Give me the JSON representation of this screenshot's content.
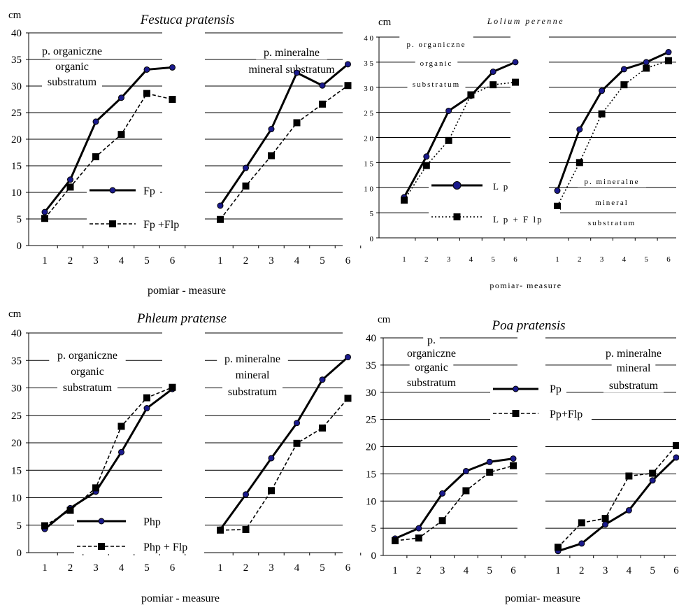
{
  "chart_data": [
    {
      "type": "line",
      "title": "Festuca pratensis",
      "ylabel": "cm",
      "xlabel": "pomiar - measure",
      "ylim": [
        0,
        40
      ],
      "y_ticks": [
        "0",
        "5",
        "10",
        "15",
        "20",
        "25",
        "30",
        "35",
        "40"
      ],
      "groups": [
        {
          "label_pl": "p. organiczne",
          "label_en": "organic substratum",
          "x": [
            "1",
            "2",
            "3",
            "4",
            "5",
            "6"
          ]
        },
        {
          "label_pl": "p. mineralne",
          "label_en": "mineral substratum",
          "x": [
            "1",
            "2",
            "3",
            "4",
            "5",
            "6"
          ]
        }
      ],
      "series": [
        {
          "name": "Fp",
          "style": "solid",
          "marker": "circle",
          "values": [
            [
              6.3,
              12.4,
              23.3,
              27.8,
              33.1,
              33.5
            ],
            [
              7.5,
              14.6,
              21.9,
              32.5,
              30.1,
              34.1
            ]
          ]
        },
        {
          "name": "Fp +Flp",
          "style": "dashed",
          "marker": "square",
          "values": [
            [
              5.1,
              11.0,
              16.7,
              20.9,
              28.6,
              27.5
            ],
            [
              4.9,
              11.2,
              16.9,
              23.1,
              26.6,
              30.1
            ]
          ]
        }
      ]
    },
    {
      "type": "line",
      "title": "Lolium perenne",
      "ylabel": "cm",
      "xlabel": "pomiar- measure",
      "ylim": [
        0,
        40
      ],
      "y_ticks": [
        "0",
        "5",
        "1 0",
        "1 5",
        "2 0",
        "2 5",
        "3 0",
        "3 5",
        "4 0"
      ],
      "groups": [
        {
          "label_pl": "p. organiczne",
          "label_en": "organic substratum",
          "x": [
            "1",
            "2",
            "3",
            "4",
            "5",
            "6"
          ]
        },
        {
          "label_pl": "p. mineralne",
          "label_en": "mineral substratum",
          "x": [
            "1",
            "2",
            "3",
            "4",
            "5",
            "6"
          ]
        }
      ],
      "series": [
        {
          "name": "L p",
          "style": "solid",
          "marker": "circle",
          "values": [
            [
              8.1,
              16.2,
              25.3,
              28.3,
              33.1,
              35.0
            ],
            [
              9.4,
              21.6,
              29.3,
              33.6,
              35.0,
              37.0
            ]
          ]
        },
        {
          "name": "L p + F lp",
          "style": "dotted",
          "marker": "square",
          "values": [
            [
              7.5,
              14.4,
              19.4,
              28.5,
              30.5,
              31.0
            ],
            [
              6.3,
              15.0,
              24.7,
              30.5,
              33.8,
              35.3
            ]
          ]
        }
      ]
    },
    {
      "type": "line",
      "title": "Phleum pratense",
      "ylabel": "cm",
      "xlabel": "pomiar - measure",
      "ylim": [
        0,
        40
      ],
      "y_ticks": [
        "0",
        "5",
        "10",
        "15",
        "20",
        "25",
        "30",
        "35",
        "40"
      ],
      "groups": [
        {
          "label_pl": "p. organiczne",
          "label_en": "organic substratum",
          "x": [
            "1",
            "2",
            "3",
            "4",
            "5",
            "6"
          ]
        },
        {
          "label_pl": "p. mineralne",
          "label_en": "mineral substratum",
          "x": [
            "1",
            "2",
            "3",
            "4",
            "5",
            "6"
          ]
        }
      ],
      "series": [
        {
          "name": "Php",
          "style": "solid",
          "marker": "circle",
          "values": [
            [
              4.3,
              8.1,
              11.1,
              18.3,
              26.3,
              29.8
            ],
            [
              4.2,
              10.6,
              17.2,
              23.6,
              31.5,
              35.6
            ]
          ]
        },
        {
          "name": "Php + Flp",
          "style": "dashed",
          "marker": "square",
          "values": [
            [
              4.9,
              7.7,
              11.8,
              23.0,
              28.2,
              30.1
            ],
            [
              4.1,
              4.2,
              11.3,
              19.9,
              22.7,
              28.1
            ]
          ]
        }
      ]
    },
    {
      "type": "line",
      "title": "Poa pratensis",
      "ylabel": "cm",
      "xlabel": "pomiar- measure",
      "ylim": [
        0,
        40
      ],
      "y_ticks": [
        "0",
        "5",
        "10",
        "15",
        "20",
        "25",
        "30",
        "35",
        "40"
      ],
      "groups": [
        {
          "label_pl": "p. organiczne",
          "label_en": "organic substratum",
          "x": [
            "1",
            "2",
            "3",
            "4",
            "5",
            "6"
          ]
        },
        {
          "label_pl": "p. mineralne",
          "label_en": "mineral substratum",
          "x": [
            "1",
            "2",
            "3",
            "4",
            "5",
            "6"
          ]
        }
      ],
      "series": [
        {
          "name": "Pp",
          "style": "solid",
          "marker": "circle",
          "values": [
            [
              3.1,
              5.0,
              11.4,
              15.5,
              17.2,
              17.8
            ],
            [
              0.8,
              2.2,
              5.7,
              8.3,
              13.8,
              18.0
            ]
          ]
        },
        {
          "name": "Pp+Flp",
          "style": "dashed",
          "marker": "square",
          "values": [
            [
              2.7,
              3.2,
              6.4,
              11.9,
              15.3,
              16.5
            ],
            [
              1.5,
              6.0,
              6.8,
              14.6,
              15.1,
              20.2
            ]
          ]
        }
      ]
    }
  ]
}
